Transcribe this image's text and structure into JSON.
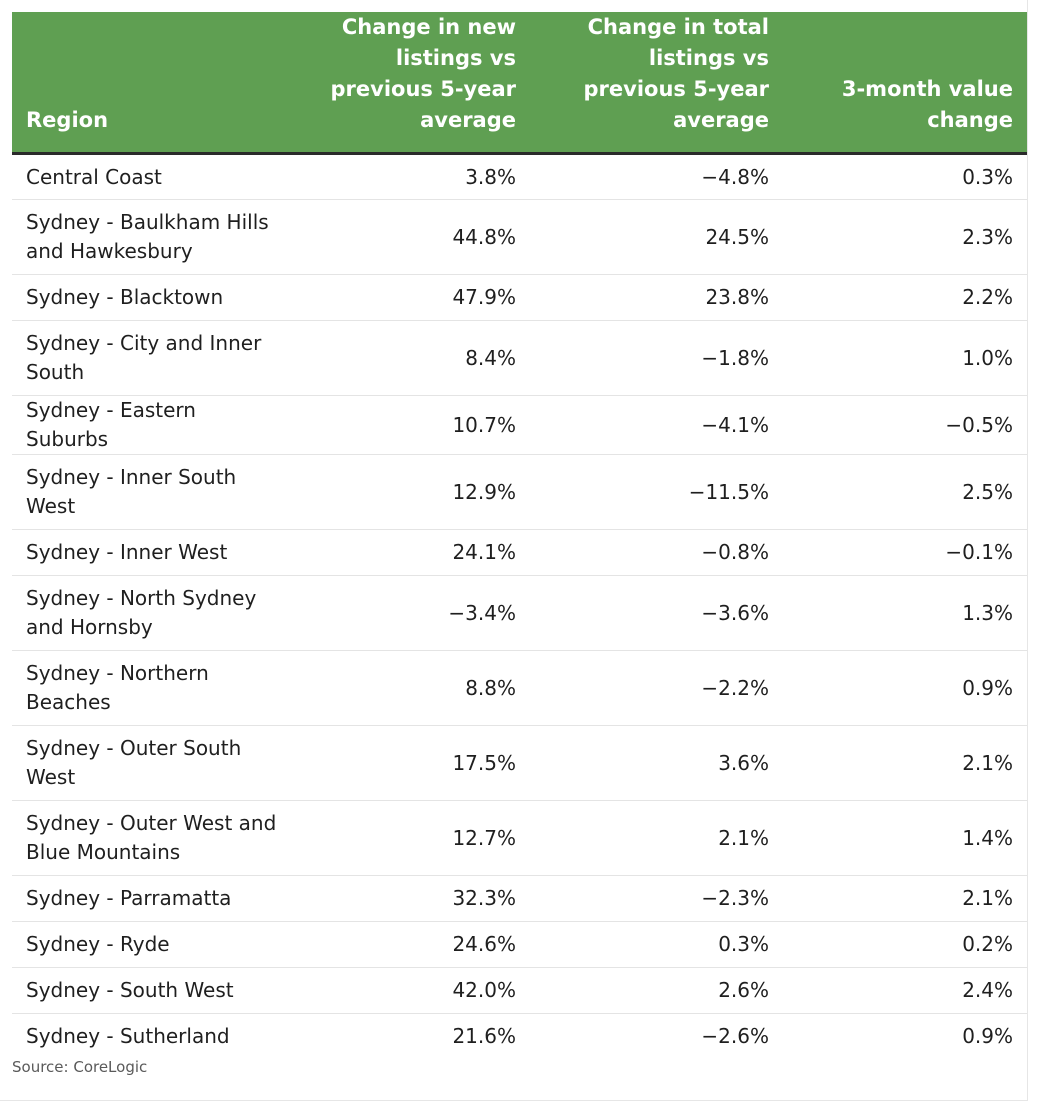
{
  "table": {
    "headers": [
      "Region",
      "Change in new listings vs previous 5-year average",
      "Change in total listings vs previous 5-year average",
      "3-month value change"
    ],
    "rows": [
      [
        "Central Coast",
        "3.8%",
        "−4.8%",
        "0.3%"
      ],
      [
        "Sydney - Baulkham Hills and Hawkesbury",
        "44.8%",
        "24.5%",
        "2.3%"
      ],
      [
        "Sydney - Blacktown",
        "47.9%",
        "23.8%",
        "2.2%"
      ],
      [
        "Sydney - City and Inner South",
        "8.4%",
        "−1.8%",
        "1.0%"
      ],
      [
        "Sydney - Eastern Suburbs",
        "10.7%",
        "−4.1%",
        "−0.5%"
      ],
      [
        "Sydney - Inner South West",
        "12.9%",
        "−11.5%",
        "2.5%"
      ],
      [
        "Sydney - Inner West",
        "24.1%",
        "−0.8%",
        "−0.1%"
      ],
      [
        "Sydney - North Sydney and Hornsby",
        "−3.4%",
        "−3.6%",
        "1.3%"
      ],
      [
        "Sydney - Northern Beaches",
        "8.8%",
        "−2.2%",
        "0.9%"
      ],
      [
        "Sydney - Outer South West",
        "17.5%",
        "3.6%",
        "2.1%"
      ],
      [
        "Sydney - Outer West and Blue Mountains",
        "12.7%",
        "2.1%",
        "1.4%"
      ],
      [
        "Sydney - Parramatta",
        "32.3%",
        "−2.3%",
        "2.1%"
      ],
      [
        "Sydney - Ryde",
        "24.6%",
        "0.3%",
        "0.2%"
      ],
      [
        "Sydney - South West",
        "42.0%",
        "2.6%",
        "2.4%"
      ],
      [
        "Sydney - Sutherland",
        "21.6%",
        "−2.6%",
        "0.9%"
      ]
    ]
  },
  "source": "Source: CoreLogic",
  "colors": {
    "header_bg": "#5f9f52",
    "header_text": "#ffffff"
  }
}
